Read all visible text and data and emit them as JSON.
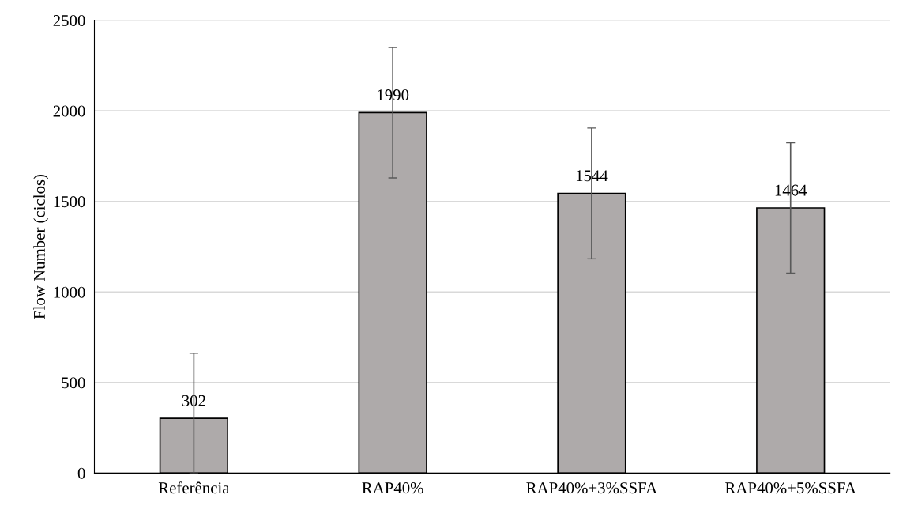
{
  "chart_data": {
    "type": "bar",
    "ylabel": "Flow Number (ciclos)",
    "categories": [
      "Referência",
      "RAP40%",
      "RAP40%+3%SSFA",
      "RAP40%+5%SSFA"
    ],
    "values": [
      302,
      1990,
      1544,
      1464
    ],
    "errors": [
      [
        0,
        662
      ],
      360,
      361,
      360
    ],
    "color": "#aeaaaa",
    "ylim": [
      0,
      2500
    ],
    "yticks": [
      0,
      500,
      1000,
      1500,
      2000,
      2500
    ],
    "grid": "y",
    "data_labels": true
  }
}
